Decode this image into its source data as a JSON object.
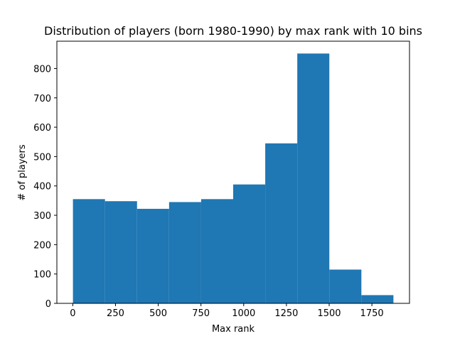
{
  "chart_data": {
    "type": "bar",
    "subtype": "histogram",
    "title": "Distribution of players (born 1980-1990) by max rank with 10 bins",
    "xlabel": "Max rank",
    "ylabel": "# of players",
    "bin_edges": [
      1,
      188.5,
      376,
      563.5,
      751,
      938.5,
      1126,
      1313.5,
      1501,
      1688.5,
      1876
    ],
    "values": [
      355,
      348,
      322,
      345,
      355,
      405,
      545,
      851,
      115,
      28
    ],
    "xlim": [
      -93,
      1970
    ],
    "ylim": [
      0,
      893
    ],
    "xticks": [
      0,
      250,
      500,
      750,
      1000,
      1250,
      1500,
      1750
    ],
    "yticks": [
      0,
      100,
      200,
      300,
      400,
      500,
      600,
      700,
      800
    ],
    "bar_color": "#1f77b4",
    "grid": false,
    "legend": "none"
  }
}
